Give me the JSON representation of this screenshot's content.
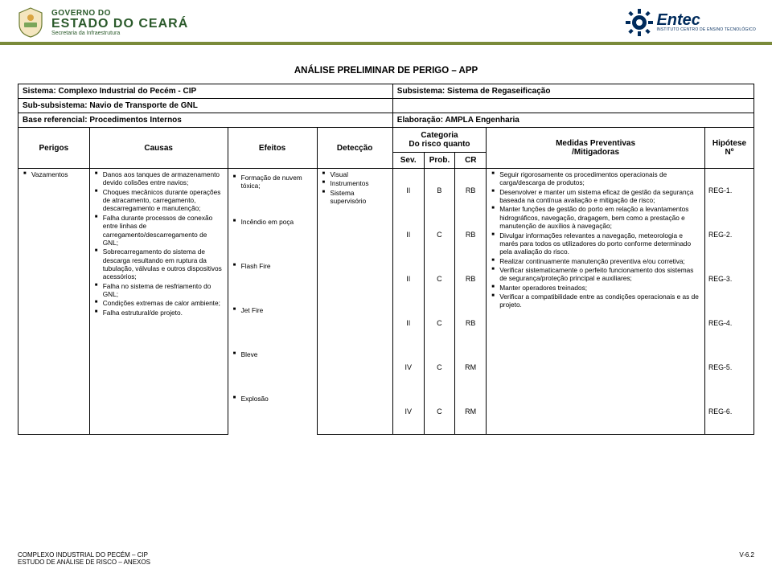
{
  "gov": {
    "line1": "GOVERNO DO",
    "line2": "ESTADO DO CEARÁ",
    "line3": "Secretaria da Infraestrutura"
  },
  "entec": {
    "brand": "Entec",
    "sub": "INSTITUTO CENTRO DE ENSINO TECNOLÓGICO"
  },
  "doc": {
    "title": "ANÁLISE PRELIMINAR DE PERIGO – APP",
    "sistema_label": "Sistema: Complexo Industrial do Pecém - CIP",
    "subsistema_label": "Subsistema: Sistema de Regaseificação",
    "subsub_label": "Sub-subsistema: Navio de Transporte de GNL",
    "base_label": "Base referencial: Procedimentos Internos",
    "elab_label": "Elaboração: AMPLA Engenharia"
  },
  "head": {
    "perigos": "Perigos",
    "causas": "Causas",
    "efeitos": "Efeitos",
    "deteccao": "Detecção",
    "categoria": "Categoria\nDo risco quanto",
    "sev": "Sev.",
    "prob": "Prob.",
    "cr": "CR",
    "medidas": "Medidas Preventivas\n/Mitigadoras",
    "hipotese": "Hipótese\nNº"
  },
  "row": {
    "perigo": "Vazamentos",
    "causas": [
      "Danos aos tanques de armazenamento devido colisões entre navios;",
      "Choques mecânicos durante operações de atracamento, carregamento, descarregamento e manutenção;",
      "Falha durante processos de conexão entre linhas de carregamento/descarregamento de GNL;",
      "Sobrecarregamento do sistema de descarga resultando em ruptura da tubulação, válvulas e outros dispositivos acessórios;",
      "Falha no sistema de resfriamento do GNL;",
      "Condições extremas de calor ambiente;",
      "Falha estrutural/de projeto."
    ],
    "efeitos": [
      "Formação de nuvem tóxica;",
      "Incêndio em poça",
      "Flash Fire",
      "Jet Fire",
      "Bleve",
      "Explosão"
    ],
    "deteccao": [
      "Visual",
      "Instrumentos",
      "Sistema supervisório"
    ],
    "cat": [
      {
        "sev": "II",
        "prob": "B",
        "cr": "RB"
      },
      {
        "sev": "II",
        "prob": "C",
        "cr": "RB"
      },
      {
        "sev": "II",
        "prob": "C",
        "cr": "RB"
      },
      {
        "sev": "II",
        "prob": "C",
        "cr": "RB"
      },
      {
        "sev": "IV",
        "prob": "C",
        "cr": "RM"
      },
      {
        "sev": "IV",
        "prob": "C",
        "cr": "RM"
      }
    ],
    "medidas": [
      "Seguir rigorosamente os procedimentos operacionais de carga/descarga de produtos;",
      "Desenvolver e manter um sistema eficaz de gestão da segurança baseada na contínua avaliação e mitigação de risco;",
      "Manter funções de gestão do porto em relação a levantamentos hidrográficos, navegação, dragagem, bem como a prestação e manutenção de auxílios à navegação;",
      "Divulgar informações relevantes a navegação, meteorologia e marés para todos os utilizadores do porto conforme determinado pela avaliação do risco.",
      "Realizar continuamente manutenção preventiva e/ou corretiva;",
      "Verificar sistematicamente o perfeito funcionamento dos sistemas de segurança/proteção principal e auxiliares;",
      "Manter operadores treinados;",
      "Verificar a compatibilidade entre as condições operacionais e as de projeto."
    ],
    "hip": [
      "REG-1.",
      "REG-2.",
      "REG-3.",
      "REG-4.",
      "REG-5.",
      "REG-6."
    ]
  },
  "footer": {
    "left1": "COMPLEXO INDUSTRIAL DO PECÉM – CIP",
    "left2": "ESTUDO DE ANÁLISE DE RISCO – ANEXOS",
    "right": "V-6.2"
  },
  "colors": {
    "accent": "#7a8a3a",
    "govgreen": "#2b5a2b",
    "entecblue": "#002b5c"
  }
}
